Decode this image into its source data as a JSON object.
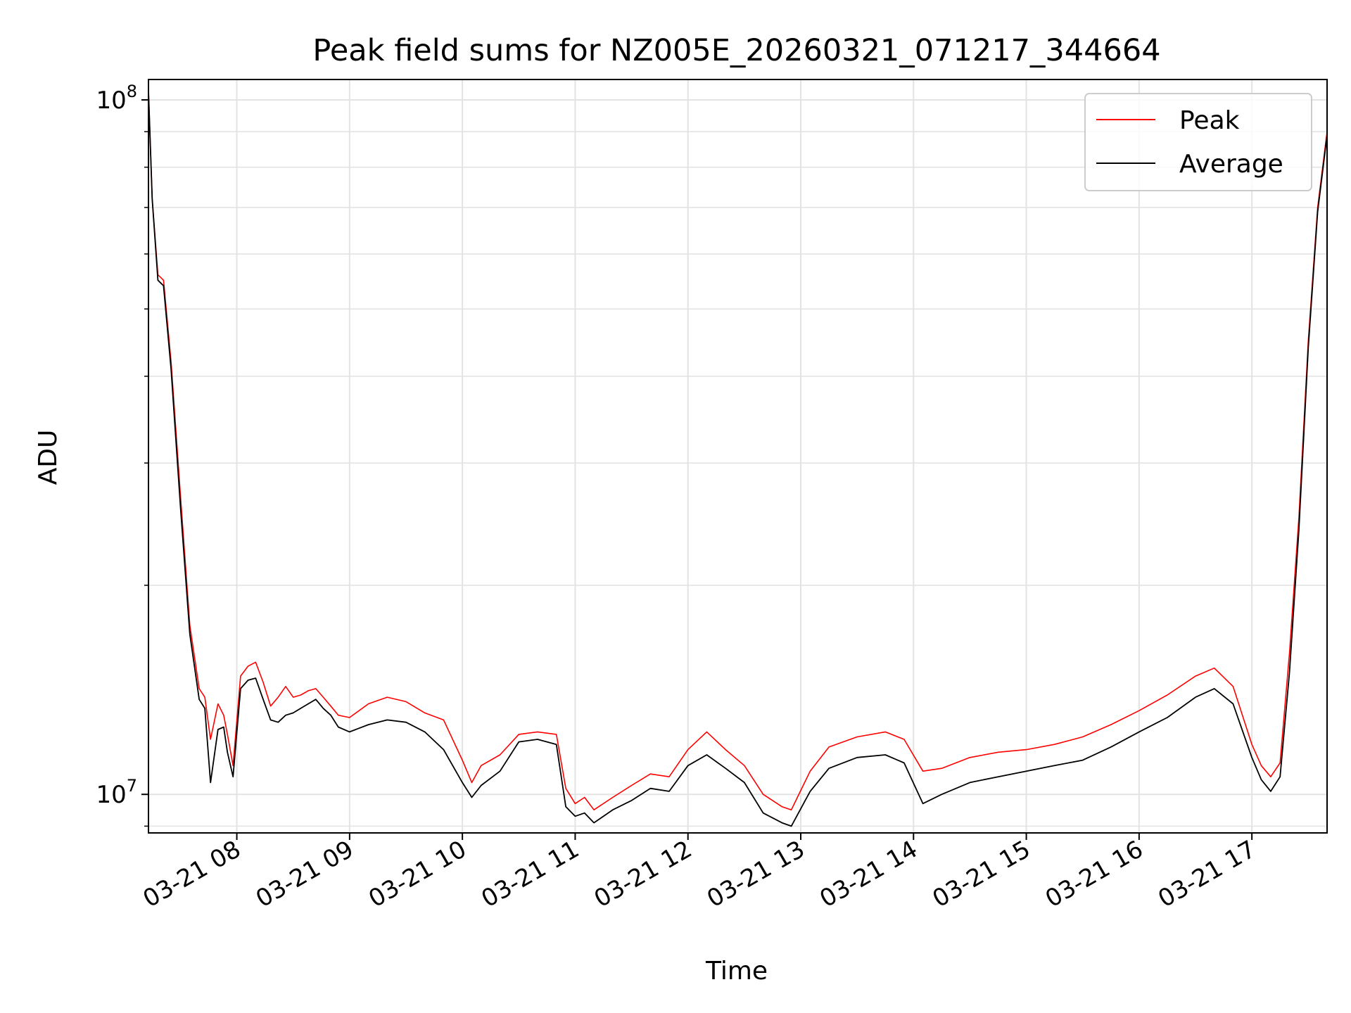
{
  "chart_data": {
    "type": "line",
    "title": "Peak field sums for NZ005E_20260321_071217_344664",
    "xlabel": "Time",
    "ylabel": "ADU",
    "yscale": "log",
    "ylim": [
      8800000,
      107000000
    ],
    "xlim": [
      "03-21 07:13",
      "03-21 17:40"
    ],
    "grid": true,
    "legend_position": "top-right",
    "x_tick_labels": [
      "03-21 08",
      "03-21 09",
      "03-21 10",
      "03-21 11",
      "03-21 12",
      "03-21 13",
      "03-21 14",
      "03-21 15",
      "03-21 16",
      "03-21 17"
    ],
    "y_tick_labels": [
      {
        "value": 10000000,
        "base": "10",
        "exp": "7"
      },
      {
        "value": 100000000,
        "base": "10",
        "exp": "8"
      }
    ],
    "series": [
      {
        "name": "Peak",
        "color": "#ff0000",
        "x": [
          "03-21 07:13",
          "03-21 07:15",
          "03-21 07:18",
          "03-21 07:21",
          "03-21 07:25",
          "03-21 07:30",
          "03-21 07:35",
          "03-21 07:40",
          "03-21 07:43",
          "03-21 07:46",
          "03-21 07:50",
          "03-21 07:53",
          "03-21 07:55",
          "03-21 07:58",
          "03-21 08:02",
          "03-21 08:06",
          "03-21 08:10",
          "03-21 08:14",
          "03-21 08:18",
          "03-21 08:22",
          "03-21 08:26",
          "03-21 08:30",
          "03-21 08:34",
          "03-21 08:38",
          "03-21 08:42",
          "03-21 08:46",
          "03-21 08:50",
          "03-21 08:54",
          "03-21 09:00",
          "03-21 09:10",
          "03-21 09:20",
          "03-21 09:30",
          "03-21 09:40",
          "03-21 09:50",
          "03-21 10:00",
          "03-21 10:05",
          "03-21 10:10",
          "03-21 10:20",
          "03-21 10:30",
          "03-21 10:40",
          "03-21 10:50",
          "03-21 10:55",
          "03-21 11:00",
          "03-21 11:05",
          "03-21 11:10",
          "03-21 11:20",
          "03-21 11:30",
          "03-21 11:40",
          "03-21 11:50",
          "03-21 12:00",
          "03-21 12:10",
          "03-21 12:20",
          "03-21 12:30",
          "03-21 12:40",
          "03-21 12:50",
          "03-21 12:55",
          "03-21 13:05",
          "03-21 13:15",
          "03-21 13:30",
          "03-21 13:45",
          "03-21 13:55",
          "03-21 14:05",
          "03-21 14:15",
          "03-21 14:30",
          "03-21 14:45",
          "03-21 15:00",
          "03-21 15:15",
          "03-21 15:30",
          "03-21 15:45",
          "03-21 16:00",
          "03-21 16:15",
          "03-21 16:30",
          "03-21 16:40",
          "03-21 16:50",
          "03-21 17:00",
          "03-21 17:05",
          "03-21 17:10",
          "03-21 17:15",
          "03-21 17:20",
          "03-21 17:25",
          "03-21 17:30",
          "03-21 17:35",
          "03-21 17:40"
        ],
        "values": [
          103000000,
          72000000,
          56000000,
          55000000,
          42000000,
          27000000,
          17500000,
          14200000,
          13800000,
          12000000,
          13500000,
          13000000,
          12200000,
          11000000,
          14800000,
          15300000,
          15500000,
          14500000,
          13400000,
          13800000,
          14300000,
          13800000,
          13900000,
          14100000,
          14200000,
          13800000,
          13400000,
          13000000,
          12900000,
          13500000,
          13800000,
          13600000,
          13100000,
          12800000,
          11200000,
          10400000,
          11000000,
          11400000,
          12200000,
          12300000,
          12200000,
          10200000,
          9700000,
          9900000,
          9500000,
          9900000,
          10300000,
          10700000,
          10600000,
          11600000,
          12300000,
          11600000,
          11000000,
          10000000,
          9600000,
          9500000,
          10800000,
          11700000,
          12100000,
          12300000,
          12000000,
          10800000,
          10900000,
          11300000,
          11500000,
          11600000,
          11800000,
          12100000,
          12600000,
          13200000,
          13900000,
          14800000,
          15200000,
          14300000,
          11800000,
          11000000,
          10600000,
          11100000,
          16000000,
          25000000,
          45000000,
          70000000,
          90000000
        ]
      },
      {
        "name": "Average",
        "color": "#000000",
        "x": [
          "03-21 07:13",
          "03-21 07:15",
          "03-21 07:18",
          "03-21 07:21",
          "03-21 07:25",
          "03-21 07:30",
          "03-21 07:35",
          "03-21 07:40",
          "03-21 07:43",
          "03-21 07:46",
          "03-21 07:50",
          "03-21 07:53",
          "03-21 07:55",
          "03-21 07:58",
          "03-21 08:02",
          "03-21 08:06",
          "03-21 08:10",
          "03-21 08:14",
          "03-21 08:18",
          "03-21 08:22",
          "03-21 08:26",
          "03-21 08:30",
          "03-21 08:34",
          "03-21 08:38",
          "03-21 08:42",
          "03-21 08:46",
          "03-21 08:50",
          "03-21 08:54",
          "03-21 09:00",
          "03-21 09:10",
          "03-21 09:20",
          "03-21 09:30",
          "03-21 09:40",
          "03-21 09:50",
          "03-21 10:00",
          "03-21 10:05",
          "03-21 10:10",
          "03-21 10:20",
          "03-21 10:30",
          "03-21 10:40",
          "03-21 10:50",
          "03-21 10:55",
          "03-21 11:00",
          "03-21 11:05",
          "03-21 11:10",
          "03-21 11:20",
          "03-21 11:30",
          "03-21 11:40",
          "03-21 11:50",
          "03-21 12:00",
          "03-21 12:10",
          "03-21 12:20",
          "03-21 12:30",
          "03-21 12:40",
          "03-21 12:50",
          "03-21 12:55",
          "03-21 13:05",
          "03-21 13:15",
          "03-21 13:30",
          "03-21 13:45",
          "03-21 13:55",
          "03-21 14:05",
          "03-21 14:15",
          "03-21 14:30",
          "03-21 14:45",
          "03-21 15:00",
          "03-21 15:15",
          "03-21 15:30",
          "03-21 15:45",
          "03-21 16:00",
          "03-21 16:15",
          "03-21 16:30",
          "03-21 16:40",
          "03-21 16:50",
          "03-21 17:00",
          "03-21 17:05",
          "03-21 17:10",
          "03-21 17:15",
          "03-21 17:20",
          "03-21 17:25",
          "03-21 17:30",
          "03-21 17:35",
          "03-21 17:40"
        ],
        "values": [
          103000000,
          72000000,
          55000000,
          54000000,
          41000000,
          26000000,
          17000000,
          13700000,
          13300000,
          10400000,
          12400000,
          12500000,
          11500000,
          10600000,
          14200000,
          14600000,
          14700000,
          13700000,
          12800000,
          12700000,
          13000000,
          13100000,
          13300000,
          13500000,
          13700000,
          13300000,
          13000000,
          12500000,
          12300000,
          12600000,
          12800000,
          12700000,
          12300000,
          11600000,
          10400000,
          9900000,
          10300000,
          10800000,
          11900000,
          12000000,
          11800000,
          9600000,
          9300000,
          9400000,
          9100000,
          9500000,
          9800000,
          10200000,
          10100000,
          11000000,
          11400000,
          10900000,
          10400000,
          9400000,
          9100000,
          9000000,
          10100000,
          10900000,
          11300000,
          11400000,
          11100000,
          9700000,
          10000000,
          10400000,
          10600000,
          10800000,
          11000000,
          11200000,
          11700000,
          12300000,
          12900000,
          13800000,
          14200000,
          13500000,
          11300000,
          10500000,
          10100000,
          10600000,
          15000000,
          24000000,
          44000000,
          69000000,
          89000000
        ]
      }
    ]
  }
}
